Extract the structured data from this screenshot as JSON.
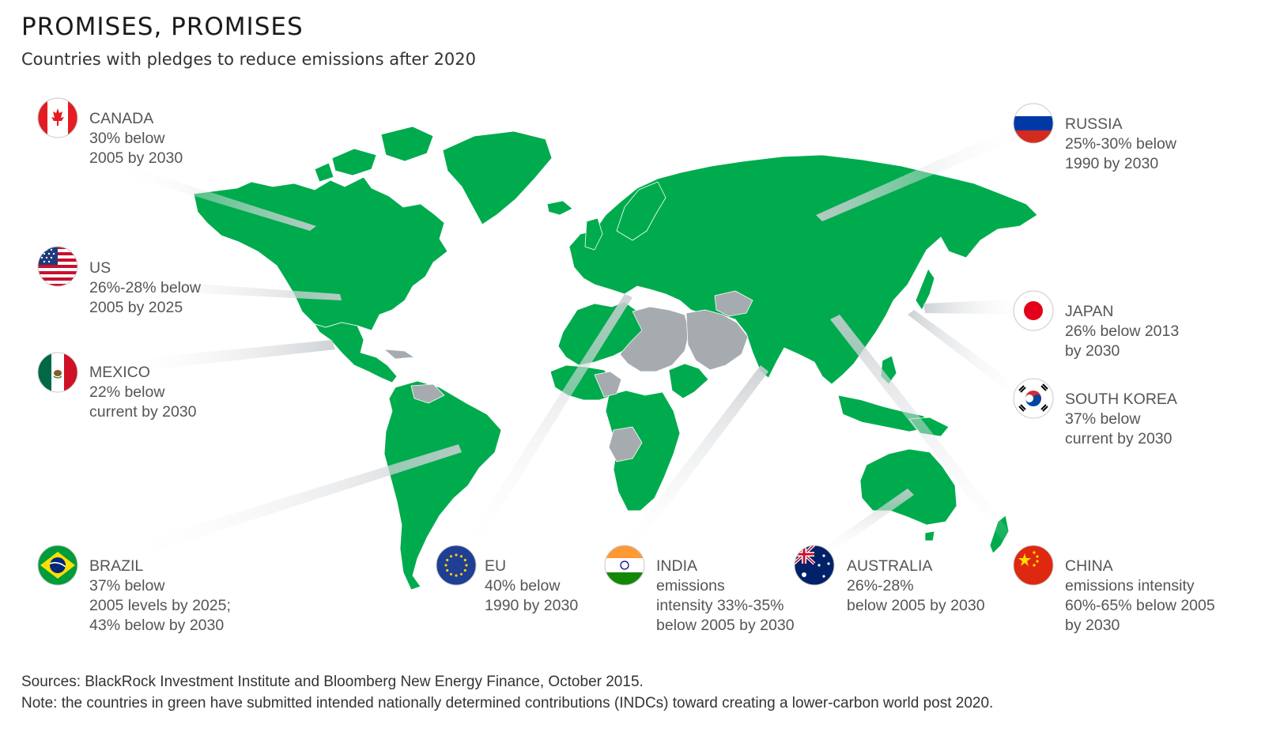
{
  "header": {
    "title": "PROMISES, PROMISES",
    "subtitle": "Countries with pledges to reduce emissions after 2020"
  },
  "legend": {
    "pledged_color": "#00ab4e",
    "no_pledge_color": "#a6abb0",
    "spotlight_color": "#d9dcdf"
  },
  "callouts": [
    {
      "id": "canada",
      "name": "CANADA",
      "lines": [
        "30% below",
        "2005 by 2030"
      ],
      "flag": "canada-flag-icon"
    },
    {
      "id": "us",
      "name": "US",
      "lines": [
        "26%-28% below",
        "2005 by 2025"
      ],
      "flag": "usa-flag-icon"
    },
    {
      "id": "mexico",
      "name": "MEXICO",
      "lines": [
        "22% below",
        "current by 2030"
      ],
      "flag": "mexico-flag-icon"
    },
    {
      "id": "brazil",
      "name": "BRAZIL",
      "lines": [
        "37% below",
        "2005 levels by 2025;",
        "43% below by 2030"
      ],
      "flag": "brazil-flag-icon"
    },
    {
      "id": "eu",
      "name": "EU",
      "lines": [
        "40% below",
        "1990 by 2030"
      ],
      "flag": "eu-flag-icon"
    },
    {
      "id": "india",
      "name": "INDIA",
      "lines": [
        "emissions",
        "intensity 33%-35%",
        "below 2005 by 2030"
      ],
      "flag": "india-flag-icon"
    },
    {
      "id": "australia",
      "name": "AUSTRALIA",
      "lines": [
        "26%-28%",
        "below 2005 by 2030"
      ],
      "flag": "australia-flag-icon"
    },
    {
      "id": "china",
      "name": "CHINA",
      "lines": [
        "emissions intensity",
        "60%-65% below 2005",
        "by 2030"
      ],
      "flag": "china-flag-icon"
    },
    {
      "id": "russia",
      "name": "RUSSIA",
      "lines": [
        "25%-30% below",
        "1990 by 2030"
      ],
      "flag": "russia-flag-icon"
    },
    {
      "id": "japan",
      "name": "JAPAN",
      "lines": [
        "26% below 2013",
        "by 2030"
      ],
      "flag": "japan-flag-icon"
    },
    {
      "id": "south_korea",
      "name": "SOUTH KOREA",
      "lines": [
        "37% below",
        "current by 2030"
      ],
      "flag": "south-korea-flag-icon"
    }
  ],
  "footer": {
    "sources": "Sources: BlackRock Investment Institute and Bloomberg New Energy Finance, October 2015.",
    "note": "Note: the countries in green have submitted intended nationally determined contributions (INDCs) toward creating a lower-carbon world post 2020."
  }
}
